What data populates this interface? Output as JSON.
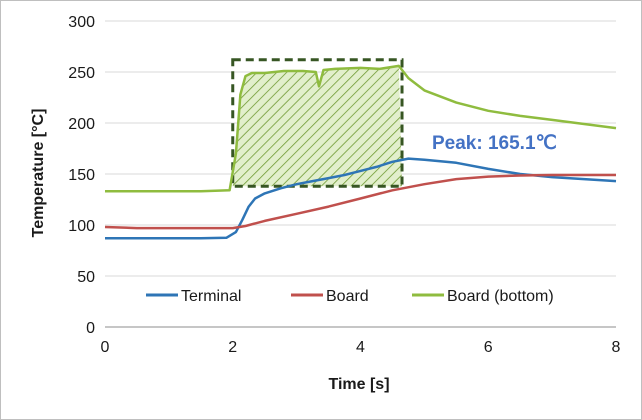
{
  "chart_data": {
    "type": "line",
    "title": "",
    "xlabel": "Time [s]",
    "ylabel": "Temperature [°C]",
    "xlim": [
      0,
      8
    ],
    "ylim": [
      0,
      300
    ],
    "xticks": [
      0,
      2,
      4,
      6,
      8
    ],
    "yticks": [
      0,
      50,
      100,
      150,
      200,
      250,
      300
    ],
    "grid": "horizontal",
    "legend_position": "bottom-inside",
    "annotation": {
      "text": "Peak: 165.1℃",
      "color": "#4472c4",
      "at": [
        6.2,
        165
      ]
    },
    "highlight_box": {
      "x": [
        2.0,
        4.65
      ],
      "y": [
        138,
        262
      ],
      "color": "#375623",
      "fill": "#92d050"
    },
    "series": [
      {
        "name": "Terminal",
        "color": "#2e75b6",
        "x": [
          0,
          0.5,
          1,
          1.5,
          1.9,
          2.05,
          2.15,
          2.25,
          2.35,
          2.5,
          2.75,
          3,
          3.25,
          3.5,
          3.75,
          4,
          4.25,
          4.5,
          4.75,
          5,
          5.5,
          6,
          6.5,
          7,
          7.5,
          8
        ],
        "y": [
          87,
          87,
          87,
          87,
          87.5,
          93,
          105,
          118,
          126,
          131,
          136,
          140,
          143,
          146,
          149,
          153,
          157,
          162,
          165.1,
          164,
          161,
          155,
          150,
          147,
          145,
          143
        ]
      },
      {
        "name": "Board",
        "color": "#c0504d",
        "x": [
          0,
          0.5,
          1,
          1.5,
          2,
          2.2,
          2.5,
          3,
          3.5,
          4,
          4.5,
          5,
          5.5,
          6,
          6.5,
          7,
          7.5,
          8
        ],
        "y": [
          98,
          97,
          97,
          97,
          97,
          99,
          104,
          111,
          118,
          126,
          134,
          140,
          145,
          147.5,
          148.5,
          149,
          149,
          149
        ]
      },
      {
        "name": "Board (bottom)",
        "color": "#8fbc3f",
        "x": [
          0,
          0.5,
          1,
          1.5,
          1.95,
          2.05,
          2.12,
          2.2,
          2.3,
          2.5,
          2.8,
          3.1,
          3.3,
          3.35,
          3.42,
          3.6,
          4,
          4.3,
          4.6,
          4.75,
          5,
          5.5,
          6,
          6.5,
          7,
          7.5,
          8
        ],
        "y": [
          133,
          133,
          133,
          133,
          134,
          170,
          228,
          246,
          249,
          249,
          251,
          251,
          250,
          236,
          252,
          253,
          254,
          253,
          256,
          244,
          232,
          220,
          212,
          207,
          203,
          199,
          195
        ]
      }
    ]
  }
}
